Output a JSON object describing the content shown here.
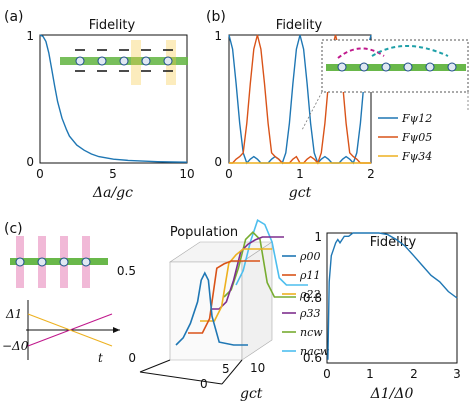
{
  "panels": {
    "a": {
      "label": "(a)"
    },
    "b": {
      "label": "(b)"
    },
    "c": {
      "label": "(c)"
    }
  },
  "colors": {
    "blue": "#1f77b4",
    "orange": "#d95319",
    "yellow": "#edb120",
    "purple": "#7e2f8e",
    "green": "#77ac30",
    "cyan": "#4dbeee",
    "axis": "#111111"
  },
  "schematic": {
    "time_label": "t",
    "delta1": "Δ1",
    "delta0": "−Δ0",
    "icons": [
      "waveguide-ring-array-icon",
      "arrow-icon",
      "laser-beam-icon"
    ]
  },
  "chart_data": [
    {
      "id": "a",
      "type": "line",
      "title": "Fidelity",
      "xlabel": "Δa/gc",
      "ylabel": "",
      "xlim": [
        0,
        10
      ],
      "ylim": [
        0,
        1
      ],
      "xticks": [
        "0",
        "5",
        "10"
      ],
      "yticks": [
        "0",
        "1"
      ],
      "series": [
        {
          "color": "#1f77b4",
          "x": [
            0,
            0.2,
            0.4,
            0.6,
            0.8,
            1.0,
            1.2,
            1.5,
            1.8,
            2.0,
            2.5,
            3.0,
            3.5,
            4.0,
            5.0,
            6.0,
            7.0,
            8.0,
            9.0,
            10.0
          ],
          "y": [
            1.0,
            0.99,
            0.95,
            0.86,
            0.73,
            0.6,
            0.48,
            0.35,
            0.26,
            0.21,
            0.14,
            0.1,
            0.07,
            0.05,
            0.03,
            0.02,
            0.015,
            0.01,
            0.008,
            0.006
          ]
        }
      ]
    },
    {
      "id": "b",
      "type": "line",
      "title": "Fidelity",
      "xlabel": "gct",
      "ylabel": "",
      "xlim": [
        0,
        2
      ],
      "ylim": [
        0,
        1
      ],
      "xticks": [
        "0",
        "1",
        "2"
      ],
      "yticks": [
        "0",
        "1"
      ],
      "series": [
        {
          "name": "Fψ12",
          "color": "#1f77b4",
          "x": [
            0,
            0.05,
            0.1,
            0.15,
            0.2,
            0.25,
            0.3,
            0.35,
            0.4,
            0.45,
            0.5,
            0.55,
            0.6,
            0.65,
            0.7,
            0.75,
            0.8,
            0.85,
            0.9,
            0.95,
            1.0,
            1.05,
            1.1,
            1.15,
            1.2,
            1.25,
            1.3,
            1.35,
            1.4,
            1.45,
            1.5,
            1.55,
            1.6,
            1.65,
            1.7,
            1.75,
            1.8,
            1.85,
            1.9,
            1.95,
            2.0
          ],
          "y": [
            1,
            0.89,
            0.62,
            0.31,
            0.08,
            0,
            0.03,
            0.05,
            0.03,
            0,
            0,
            0,
            0.03,
            0.05,
            0.03,
            0,
            0.08,
            0.31,
            0.62,
            0.89,
            1,
            0.89,
            0.62,
            0.31,
            0.08,
            0,
            0.03,
            0.05,
            0.03,
            0,
            0,
            0,
            0.03,
            0.05,
            0.03,
            0,
            0.08,
            0.31,
            0.62,
            0.89,
            1
          ]
        },
        {
          "name": "Fψ05",
          "color": "#d95319",
          "x": [
            0,
            0.05,
            0.1,
            0.15,
            0.2,
            0.25,
            0.3,
            0.35,
            0.4,
            0.45,
            0.5,
            0.55,
            0.6,
            0.65,
            0.7,
            0.75,
            0.8,
            0.85,
            0.9,
            0.95,
            1.0,
            1.05,
            1.1,
            1.15,
            1.2,
            1.25,
            1.3,
            1.35,
            1.4,
            1.45,
            1.5,
            1.55,
            1.6,
            1.65,
            1.7,
            1.75,
            1.8,
            1.85,
            1.9,
            1.95,
            2.0
          ],
          "y": [
            0,
            0,
            0.03,
            0.05,
            0.08,
            0.31,
            0.62,
            0.89,
            1,
            0.89,
            0.62,
            0.31,
            0.08,
            0.05,
            0.03,
            0,
            0,
            0,
            0.03,
            0.05,
            0,
            0,
            0.03,
            0.05,
            0.03,
            0,
            0.08,
            0.31,
            0.62,
            0.89,
            1,
            0.89,
            0.62,
            0.31,
            0.08,
            0.05,
            0.03,
            0,
            0,
            0,
            0
          ]
        },
        {
          "name": "Fψ34",
          "color": "#edb120",
          "x": [
            0,
            0.05,
            0.1,
            0.15,
            0.2,
            0.25,
            0.3,
            0.35,
            0.4,
            0.45,
            0.5,
            0.55,
            0.6,
            0.65,
            0.7,
            0.75,
            0.8,
            0.85,
            0.9,
            0.95,
            1.0,
            1.05,
            1.1,
            1.15,
            1.2,
            1.25,
            1.3,
            1.35,
            1.4,
            1.45,
            1.5,
            1.55,
            1.6,
            1.65,
            1.7,
            1.75,
            1.8,
            1.85,
            1.9,
            1.95,
            2.0
          ],
          "y": [
            0,
            0,
            0,
            0,
            0,
            0,
            0,
            0,
            0,
            0,
            0,
            0,
            0,
            0,
            0,
            0,
            0,
            0,
            0,
            0,
            0,
            0,
            0,
            0,
            0,
            0,
            0,
            0,
            0,
            0,
            0,
            0,
            0,
            0,
            0,
            0,
            0,
            0,
            0,
            0,
            0
          ]
        }
      ]
    },
    {
      "id": "c-population",
      "type": "line",
      "title": "Population",
      "xlabel": "gct",
      "xlim": [
        0,
        10
      ],
      "zlim": [
        0,
        0.5
      ],
      "xticks": [
        "0",
        "5",
        "10"
      ],
      "zticks": [
        "0",
        "0.5"
      ],
      "series": [
        {
          "name": "ρ00",
          "color": "#1f77b4",
          "x": [
            0,
            1,
            2,
            3,
            3.5,
            4,
            4.5,
            5,
            6,
            8,
            10
          ],
          "y": [
            0,
            0.05,
            0.15,
            0.3,
            0.45,
            0.5,
            0.45,
            0.2,
            0.02,
            0,
            0
          ]
        },
        {
          "name": "ρ11",
          "color": "#d95319",
          "x": [
            0,
            1,
            2,
            3,
            4,
            5,
            6,
            7,
            8,
            10
          ],
          "y": [
            0,
            0,
            0,
            0.1,
            0.45,
            0.48,
            0.5,
            0.5,
            0.5,
            0.5
          ]
        },
        {
          "name": "ρ22",
          "color": "#edb120",
          "x": [
            0,
            1,
            2,
            3,
            4,
            5,
            6,
            7,
            8,
            10
          ],
          "y": [
            0,
            0,
            0,
            0.1,
            0.4,
            0.46,
            0.5,
            0.5,
            0.5,
            0.5
          ]
        },
        {
          "name": "ρ33",
          "color": "#7e2f8e",
          "x": [
            0,
            1,
            2,
            3,
            4,
            5,
            6,
            7,
            8,
            10
          ],
          "y": [
            0,
            0,
            0.05,
            0.2,
            0.4,
            0.45,
            0.48,
            0.5,
            0.5,
            0.5
          ]
        },
        {
          "name": "ncw",
          "color": "#77ac30",
          "x": [
            0,
            1,
            2,
            3,
            4,
            5,
            6,
            7,
            8,
            10
          ],
          "y": [
            0,
            0.05,
            0.2,
            0.4,
            0.45,
            0.4,
            0.1,
            0,
            0,
            0
          ]
        },
        {
          "name": "nacw",
          "color": "#4dbeee",
          "x": [
            0,
            1,
            2,
            3,
            4,
            5,
            6,
            7,
            8,
            10
          ],
          "y": [
            0,
            0.1,
            0.3,
            0.45,
            0.42,
            0.3,
            0.05,
            0,
            0,
            0
          ]
        }
      ]
    },
    {
      "id": "c-fidelity",
      "type": "line",
      "title": "Fidelity",
      "xlabel": "Δ1/Δ0",
      "ylabel": "",
      "xlim": [
        0,
        3
      ],
      "ylim": [
        0.6,
        1
      ],
      "xticks": [
        "0",
        "1",
        "2",
        "3"
      ],
      "yticks": [
        "0.6",
        "0.8",
        "1"
      ],
      "series": [
        {
          "color": "#1f77b4",
          "x": [
            0.02,
            0.05,
            0.1,
            0.15,
            0.2,
            0.25,
            0.3,
            0.4,
            0.5,
            0.6,
            0.8,
            1.0,
            1.2,
            1.4,
            1.6,
            1.8,
            2.0,
            2.2,
            2.4,
            2.6,
            2.8,
            3.0
          ],
          "y": [
            0.61,
            0.85,
            0.93,
            0.95,
            0.97,
            0.98,
            0.97,
            0.99,
            0.99,
            1.0,
            1.0,
            1.0,
            1.0,
            0.995,
            0.98,
            0.96,
            0.93,
            0.9,
            0.87,
            0.85,
            0.82,
            0.8
          ]
        }
      ]
    }
  ]
}
